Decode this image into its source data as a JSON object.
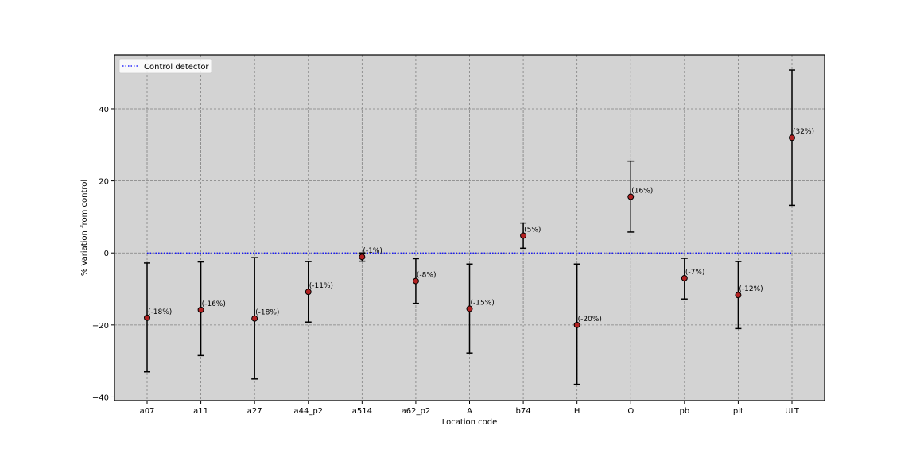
{
  "chart_data": {
    "type": "scatter",
    "title": "",
    "xlabel": "Location code",
    "ylabel": "% Variation from control",
    "categories": [
      "a07",
      "a11",
      "a27",
      "a44_p2",
      "a514",
      "a62_p2",
      "A",
      "b74",
      "H",
      "O",
      "pb",
      "pit",
      "ULT"
    ],
    "series": [
      {
        "kind": "errorbar-points",
        "values": [
          -18,
          -15.8,
          -18.2,
          -10.8,
          -1.1,
          -7.8,
          -15.5,
          4.8,
          -20,
          15.6,
          -7,
          -11.7,
          32
        ],
        "error_lower": [
          -33,
          -28.5,
          -35,
          -19.2,
          -2.3,
          -14,
          -27.8,
          1.3,
          -36.5,
          5.8,
          -12.8,
          -21,
          13.2
        ],
        "error_upper": [
          -2.8,
          -2.5,
          -1.3,
          -2.4,
          0,
          -1.6,
          -3.1,
          8.3,
          -3.1,
          25.5,
          -1.5,
          -2.4,
          50.8
        ],
        "labels": [
          "(-18%)",
          "(-16%)",
          "(-18%)",
          "(-11%)",
          "(-1%)",
          "(-8%)",
          "(-15%)",
          "(5%)",
          "(-20%)",
          "(16%)",
          "(-7%)",
          "(-12%)",
          "(32%)"
        ],
        "marker_color": "#b22222",
        "marker_edge_color": "#000000",
        "error_color": "#000000"
      },
      {
        "kind": "reference-line",
        "name": "Control detector",
        "value": 0,
        "style": "dotted",
        "color": "#0000ff"
      }
    ],
    "ylim": [
      -41,
      55
    ],
    "yticks": [
      -40,
      -20,
      0,
      20,
      40
    ],
    "ytick_labels": [
      "−40",
      "−20",
      "0",
      "20",
      "40"
    ],
    "grid": true,
    "grid_style": "dashed",
    "legend_position": "top-left",
    "plot_background": "#d3d3d3"
  }
}
